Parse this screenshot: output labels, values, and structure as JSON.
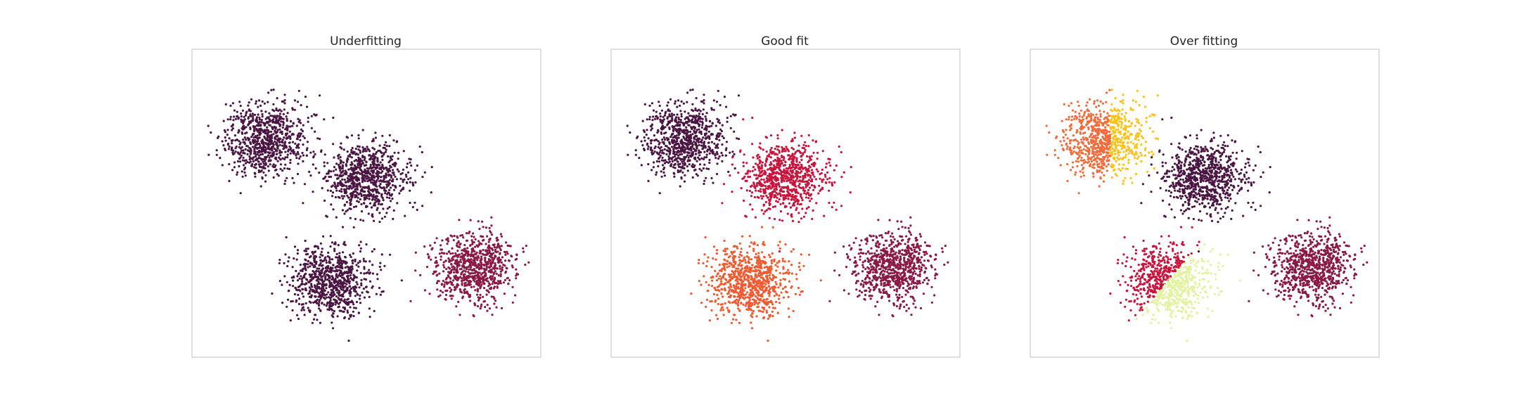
{
  "chart_data": [
    {
      "type": "scatter",
      "title": "Underfitting",
      "xlabel": "",
      "ylabel": "",
      "xlim": [
        -12,
        12
      ],
      "ylim": [
        -12,
        12
      ],
      "grid": false,
      "clusters": [
        {
          "center": [
            -7,
            5
          ],
          "spread": 1.4,
          "count": 800,
          "color": "#4a1542"
        },
        {
          "center": [
            0,
            2
          ],
          "spread": 1.4,
          "count": 800,
          "color": "#4a1542"
        },
        {
          "center": [
            -2.5,
            -6
          ],
          "spread": 1.4,
          "count": 800,
          "color": "#4a1542"
        },
        {
          "center": [
            7.5,
            -5
          ],
          "spread": 1.4,
          "count": 800,
          "color": "#8a1845"
        }
      ]
    },
    {
      "type": "scatter",
      "title": "Good fit",
      "xlabel": "",
      "ylabel": "",
      "xlim": [
        -12,
        12
      ],
      "ylim": [
        -12,
        12
      ],
      "grid": false,
      "clusters": [
        {
          "center": [
            -7,
            5
          ],
          "spread": 1.4,
          "count": 800,
          "color": "#4a1542"
        },
        {
          "center": [
            0,
            2
          ],
          "spread": 1.4,
          "count": 800,
          "color": "#c8143c"
        },
        {
          "center": [
            -2.5,
            -6
          ],
          "spread": 1.4,
          "count": 800,
          "color": "#f05a30"
        },
        {
          "center": [
            7.5,
            -5
          ],
          "spread": 1.4,
          "count": 800,
          "color": "#8a1845"
        }
      ]
    },
    {
      "type": "scatter",
      "title": "Over fitting",
      "xlabel": "",
      "ylabel": "",
      "xlim": [
        -12,
        12
      ],
      "ylim": [
        -12,
        12
      ],
      "grid": false,
      "clusters": [
        {
          "center": [
            -7,
            5
          ],
          "spread": 1.4,
          "count": 800,
          "split": "vertical",
          "split_at": -6.5,
          "colors": [
            "#f26b3a",
            "#fbc21a"
          ]
        },
        {
          "center": [
            0,
            2
          ],
          "spread": 1.4,
          "count": 800,
          "color": "#4a1542"
        },
        {
          "center": [
            -2.5,
            -6
          ],
          "spread": 1.4,
          "count": 800,
          "split": "diagonal",
          "colors": [
            "#c8143c",
            "#e3f2a2"
          ]
        },
        {
          "center": [
            7.5,
            -5
          ],
          "spread": 1.4,
          "count": 800,
          "color": "#8a1845"
        }
      ]
    }
  ]
}
